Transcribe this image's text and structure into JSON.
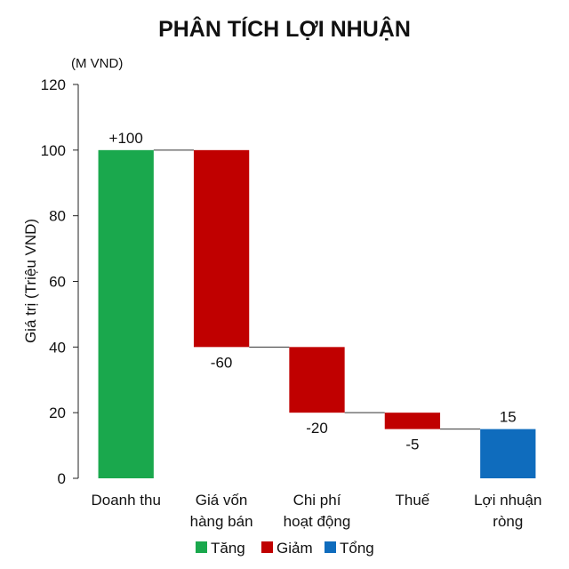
{
  "chart_data": {
    "type": "bar",
    "subtype": "waterfall",
    "title": "PHÂN TÍCH LỢI NHUẬN",
    "unit_label": "(M VND)",
    "ylabel": "Giá trị (Triệu VND)",
    "xlabel": "",
    "ylim": [
      0,
      120
    ],
    "yticks": [
      0,
      20,
      40,
      60,
      80,
      100,
      120
    ],
    "grid": false,
    "legend_position": "bottom",
    "categories": [
      [
        "Doanh thu"
      ],
      [
        "Giá vốn",
        "hàng bán"
      ],
      [
        "Chi phí",
        "hoạt động"
      ],
      [
        "Thuế"
      ],
      [
        "Lợi nhuận",
        "ròng"
      ]
    ],
    "steps": [
      {
        "value": 100,
        "kind": "Tăng",
        "label": "+100"
      },
      {
        "value": -60,
        "kind": "Giảm",
        "label": "-60"
      },
      {
        "value": -20,
        "kind": "Giảm",
        "label": "-20"
      },
      {
        "value": -5,
        "kind": "Giảm",
        "label": "-5"
      },
      {
        "value": 15,
        "kind": "Tổng",
        "label": "15"
      }
    ],
    "legend": [
      {
        "name": "Tăng",
        "color": "#1aa84d"
      },
      {
        "name": "Giảm",
        "color": "#c00000"
      },
      {
        "name": "Tổng",
        "color": "#0f6cbd"
      }
    ]
  }
}
